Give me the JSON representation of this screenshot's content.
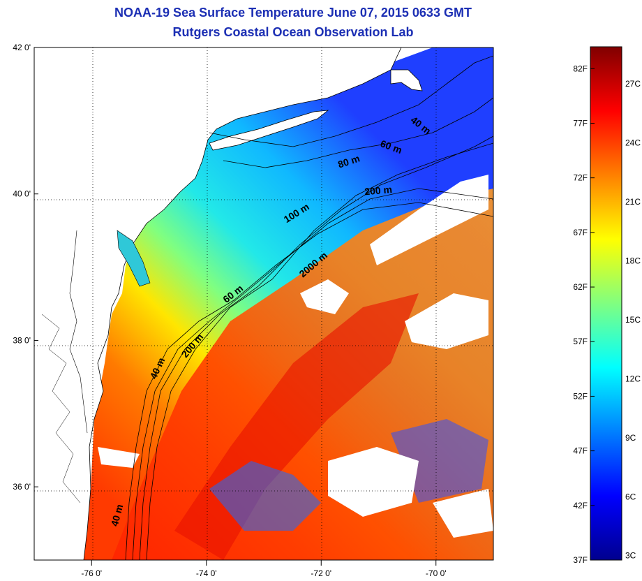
{
  "title": "NOAA-19 Sea Surface Temperature June 07, 2015 0633 GMT",
  "subtitle": "Rutgers Coastal Ocean Observation Lab",
  "map": {
    "lat_ticks": [
      {
        "value": 42,
        "label": "42 0'"
      },
      {
        "value": 40,
        "label": "40 0'"
      },
      {
        "value": 38,
        "label": "38 0'"
      },
      {
        "value": 36,
        "label": "36 0'"
      }
    ],
    "lon_ticks": [
      {
        "value": -76,
        "label": "-76 0'"
      },
      {
        "value": -74,
        "label": "-74 0'"
      },
      {
        "value": -72,
        "label": "-72 0'"
      },
      {
        "value": -70,
        "label": "-70 0'"
      }
    ],
    "lon_range": [
      -77,
      -69
    ],
    "lat_range": [
      35,
      42
    ],
    "isobath_labels": [
      {
        "text": "40 m",
        "lon": -70.3,
        "lat": 40.9,
        "rot": 38
      },
      {
        "text": "60 m",
        "lon": -70.8,
        "lat": 40.6,
        "rot": 20
      },
      {
        "text": "80 m",
        "lon": -71.5,
        "lat": 40.4,
        "rot": -18
      },
      {
        "text": "200 m",
        "lon": -71.0,
        "lat": 40.0,
        "rot": -5
      },
      {
        "text": "100 m",
        "lon": -72.4,
        "lat": 39.7,
        "rot": -32
      },
      {
        "text": "2000 m",
        "lon": -72.1,
        "lat": 39.0,
        "rot": -40
      },
      {
        "text": "60 m",
        "lon": -73.5,
        "lat": 38.6,
        "rot": -38
      },
      {
        "text": "200 m",
        "lon": -74.2,
        "lat": 37.9,
        "rot": -50
      },
      {
        "text": "40 m",
        "lon": -74.8,
        "lat": 37.6,
        "rot": -65
      },
      {
        "text": "40 m",
        "lon": -75.5,
        "lat": 35.6,
        "rot": -75
      }
    ]
  },
  "colorbar": {
    "fahrenheit_labels": [
      "82F",
      "77F",
      "72F",
      "67F",
      "62F",
      "57F",
      "52F",
      "47F",
      "42F",
      "37F"
    ],
    "celsius_labels": [
      "27C",
      "24C",
      "21C",
      "18C",
      "15C",
      "12C",
      "9C",
      "6C",
      "3C"
    ],
    "min_f": 37,
    "max_f": 84,
    "colors": [
      "#00008f",
      "#0000ff",
      "#0080ff",
      "#00ffff",
      "#80ff80",
      "#ffff00",
      "#ff8000",
      "#ff0000",
      "#800000"
    ]
  }
}
